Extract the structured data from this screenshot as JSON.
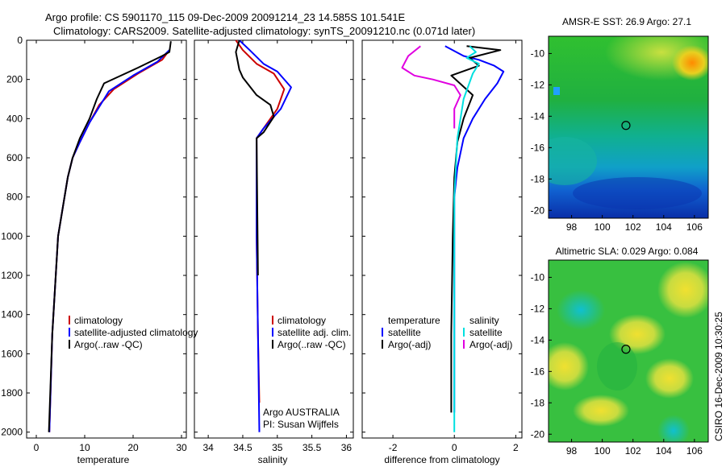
{
  "header": {
    "line1": "Argo profile: CS 5901170_115 09-Dec-2009 20091214_23 14.585S 101.541E",
    "line2": "Climatology: CARS2009. Satellite-adjusted climatology: synTS_20091210.nc (0.071d later)"
  },
  "side_label": "CSIRO 16-Dec-2009 10:30:25",
  "colors": {
    "clim": "#cc0000",
    "sat": "#0000ff",
    "argo": "#000000",
    "sat_sal": "#00e0e0",
    "argo_sal": "#e000e0"
  },
  "chart_data": [
    {
      "type": "line",
      "xlabel": "temperature",
      "xlim": [
        -2,
        31
      ],
      "ylim": [
        2030,
        0
      ],
      "xticks": [
        0,
        10,
        20,
        30
      ],
      "yticks": [
        0,
        200,
        400,
        600,
        800,
        1000,
        1200,
        1400,
        1600,
        1800,
        2000
      ],
      "legend": {
        "clim": "climatology",
        "sat": "satellite-adjusted climatology",
        "argo": "Argo(..raw -QC)"
      },
      "series": [
        {
          "name": "climatology",
          "color": "#cc0000",
          "x": [
            27.5,
            26,
            21,
            16,
            13,
            11,
            9,
            7.5,
            6.5,
            4.5,
            3.3,
            2.7
          ],
          "y": [
            50,
            100,
            170,
            250,
            330,
            420,
            520,
            600,
            700,
            1000,
            1500,
            2000
          ]
        },
        {
          "name": "satellite-adjusted climatology",
          "color": "#0000ff",
          "x": [
            27.5,
            25,
            20,
            15,
            13,
            11,
            9,
            7.5,
            6.5,
            4.5,
            3.3,
            2.7
          ],
          "y": [
            50,
            110,
            180,
            260,
            340,
            420,
            520,
            600,
            700,
            1000,
            1500,
            2000
          ]
        },
        {
          "name": "Argo(..raw -QC)",
          "color": "#000000",
          "x": [
            27.8,
            27.5,
            26,
            21,
            14,
            12.5,
            11,
            9,
            7.5,
            6.5,
            4.5,
            3.3,
            2.6
          ],
          "y": [
            5,
            60,
            80,
            140,
            220,
            300,
            400,
            500,
            600,
            700,
            1000,
            1500,
            2000
          ]
        }
      ]
    },
    {
      "type": "line",
      "xlabel": "salinity",
      "xlim": [
        33.8,
        36.1
      ],
      "ylim": [
        2030,
        0
      ],
      "xticks": [
        34,
        34.5,
        35,
        35.5,
        36
      ],
      "legend": {
        "clim": "climatology",
        "sat": "satellite adj. clim.",
        "argo": "Argo(..raw -QC)"
      },
      "annotation": [
        "Argo AUSTRALIA",
        "PI: Susan Wijffels"
      ],
      "series": [
        {
          "name": "climatology",
          "color": "#cc0000",
          "x": [
            34.4,
            34.5,
            34.7,
            34.95,
            35.1,
            35.0,
            34.8,
            34.7,
            34.7,
            34.72,
            34.74
          ],
          "y": [
            0,
            50,
            120,
            170,
            250,
            350,
            450,
            500,
            1000,
            1500,
            1850
          ]
        },
        {
          "name": "satellite adj. clim.",
          "color": "#0000ff",
          "x": [
            34.45,
            34.6,
            34.8,
            35.0,
            35.2,
            35.05,
            34.8,
            34.7,
            34.7,
            34.72,
            34.74
          ],
          "y": [
            0,
            50,
            120,
            160,
            240,
            350,
            450,
            500,
            1000,
            1500,
            2000
          ]
        },
        {
          "name": "Argo(..raw -QC)",
          "color": "#000000",
          "x": [
            34.45,
            34.4,
            34.45,
            34.5,
            34.7,
            34.9,
            34.95,
            34.8,
            34.7,
            34.72
          ],
          "y": [
            0,
            60,
            150,
            190,
            280,
            330,
            390,
            470,
            500,
            1200
          ]
        }
      ]
    },
    {
      "type": "line",
      "xlabel": "difference from climatology",
      "xlim": [
        -3,
        2.2
      ],
      "ylim": [
        2030,
        0
      ],
      "xticks": [
        -2,
        0,
        2
      ],
      "legend": {
        "t_head": "temperature",
        "t_sat": "satellite",
        "t_argo": "Argo(-adj)",
        "s_head": "salinity",
        "s_sat": "satellite",
        "s_argo": "Argo(-adj)"
      },
      "series": [
        {
          "name": "temperature satellite",
          "color": "#0000ff",
          "x": [
            -0.3,
            0.3,
            0.8,
            1.3,
            1.6,
            1.4,
            1.0,
            0.6,
            0.3,
            0.1,
            0.0,
            0.0,
            0.0
          ],
          "y": [
            30,
            80,
            100,
            130,
            160,
            220,
            300,
            400,
            500,
            650,
            800,
            1200,
            1900
          ]
        },
        {
          "name": "temperature Argo(-adj)",
          "color": "#000000",
          "x": [
            0.4,
            1.5,
            0.5,
            0.8,
            -0.1,
            0.6,
            0.3,
            0.1,
            0.0,
            -0.05,
            -0.1,
            -0.1
          ],
          "y": [
            30,
            50,
            90,
            130,
            180,
            280,
            400,
            520,
            700,
            1000,
            1500,
            1900
          ]
        },
        {
          "name": "salinity satellite",
          "color": "#00e0e0",
          "x": [
            0.5,
            0.7,
            0.4,
            0.8,
            0.6,
            0.3,
            0.1,
            0.0,
            0.0,
            0.0
          ],
          "y": [
            30,
            60,
            90,
            120,
            170,
            300,
            500,
            800,
            1200,
            2000
          ]
        },
        {
          "name": "salinity Argo(-adj)",
          "color": "#e000e0",
          "x": [
            -1.1,
            -1.5,
            -1.7,
            -1.3,
            -0.7,
            0.0,
            0.2,
            0.0,
            0.0
          ],
          "y": [
            30,
            80,
            140,
            180,
            200,
            230,
            280,
            350,
            450
          ]
        }
      ]
    },
    {
      "type": "heatmap",
      "title": "AMSR-E SST: 26.9 Argo: 27.1",
      "xlim": [
        96.5,
        106.9
      ],
      "ylim": [
        -20.5,
        -8.9
      ],
      "xticks": [
        98,
        100,
        102,
        104,
        106
      ],
      "yticks": [
        -10,
        -12,
        -14,
        -16,
        -18,
        -20
      ],
      "xtick_labels": [
        "98",
        "100",
        "102",
        "104",
        "106"
      ],
      "ytick_labels": [
        "-10",
        "-12",
        "-14",
        "-16",
        "-18",
        "-20"
      ],
      "marker": {
        "lon": 101.54,
        "lat": -14.585
      }
    },
    {
      "type": "heatmap",
      "title": "Altimetric SLA: 0.029 Argo: 0.084",
      "xlim": [
        96.5,
        106.9
      ],
      "ylim": [
        -20.5,
        -8.9
      ],
      "xticks": [
        98,
        100,
        102,
        104,
        106
      ],
      "yticks": [
        -10,
        -12,
        -14,
        -16,
        -18,
        -20
      ],
      "xtick_labels": [
        "98",
        "100",
        "102",
        "104",
        "106"
      ],
      "ytick_labels": [
        "-10",
        "-12",
        "-14",
        "-16",
        "-18",
        "-20"
      ],
      "marker": {
        "lon": 101.54,
        "lat": -14.585
      }
    }
  ]
}
